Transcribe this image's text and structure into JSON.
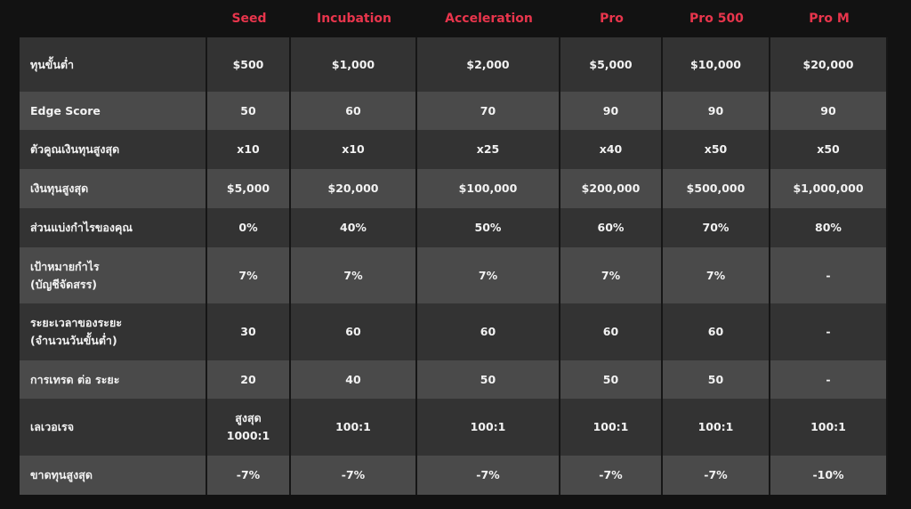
{
  "table": {
    "columns": [
      "Seed",
      "Incubation",
      "Acceleration",
      "Pro",
      "Pro 500",
      "Pro M"
    ],
    "rows": [
      {
        "label": "ทุนขั้นต่ำ",
        "cells": [
          "$500",
          "$1,000",
          "$2,000",
          "$5,000",
          "$10,000",
          "$20,000"
        ]
      },
      {
        "label": "Edge Score",
        "cells": [
          "50",
          "60",
          "70",
          "90",
          "90",
          "90"
        ]
      },
      {
        "label": "ตัวคูณเงินทุนสูงสุด",
        "cells": [
          "x10",
          "x10",
          "x25",
          "x40",
          "x50",
          "x50"
        ]
      },
      {
        "label": "เงินทุนสูงสุด",
        "cells": [
          "$5,000",
          "$20,000",
          "$100,000",
          "$200,000",
          "$500,000",
          "$1,000,000"
        ]
      },
      {
        "label": "ส่วนแบ่งกำไรของคุณ",
        "cells": [
          "0%",
          "40%",
          "50%",
          "60%",
          "70%",
          "80%"
        ]
      },
      {
        "label": "เป้าหมายกำไร\n(บัญชีจัดสรร)",
        "cells": [
          "7%",
          "7%",
          "7%",
          "7%",
          "7%",
          "-"
        ]
      },
      {
        "label": "ระยะเวลาของระยะ\n(จำนวนวันขั้นต่ำ)",
        "cells": [
          "30",
          "60",
          "60",
          "60",
          "60",
          "-"
        ]
      },
      {
        "label": "การเทรด ต่อ ระยะ",
        "cells": [
          "20",
          "40",
          "50",
          "50",
          "50",
          "-"
        ]
      },
      {
        "label": "เลเวอเรจ",
        "cells": [
          "สูงสุด\n1000:1",
          "100:1",
          "100:1",
          "100:1",
          "100:1",
          "100:1"
        ]
      },
      {
        "label": "ขาดทุนสูงสุด",
        "cells": [
          "-7%",
          "-7%",
          "-7%",
          "-7%",
          "-7%",
          "-10%"
        ]
      }
    ]
  }
}
